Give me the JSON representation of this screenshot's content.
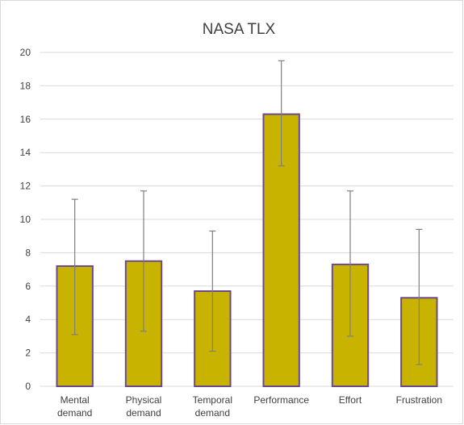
{
  "chart_data": {
    "type": "bar",
    "title": "NASA TLX",
    "categories": [
      [
        "Mental",
        "demand"
      ],
      [
        "Physical",
        "demand"
      ],
      [
        "Temporal",
        "demand"
      ],
      [
        "Performance"
      ],
      [
        "Effort"
      ],
      [
        "Frustration"
      ]
    ],
    "values": [
      7.2,
      7.5,
      5.7,
      16.3,
      7.3,
      5.3
    ],
    "error_low": [
      3.1,
      3.3,
      2.1,
      13.2,
      3.0,
      1.3
    ],
    "error_high": [
      11.2,
      11.7,
      9.3,
      19.5,
      11.7,
      9.4
    ],
    "ylim": [
      0,
      20
    ],
    "yticks": [
      "0",
      "2",
      "4",
      "6",
      "8",
      "10",
      "12",
      "14",
      "16",
      "18",
      "20"
    ],
    "grid": true,
    "legend": "none",
    "colors": {
      "bar_fill": "#c8b400",
      "bar_stroke": "#6b4a8c",
      "error_bar": "#7f7f7f",
      "grid": "#d9d9d9"
    }
  }
}
